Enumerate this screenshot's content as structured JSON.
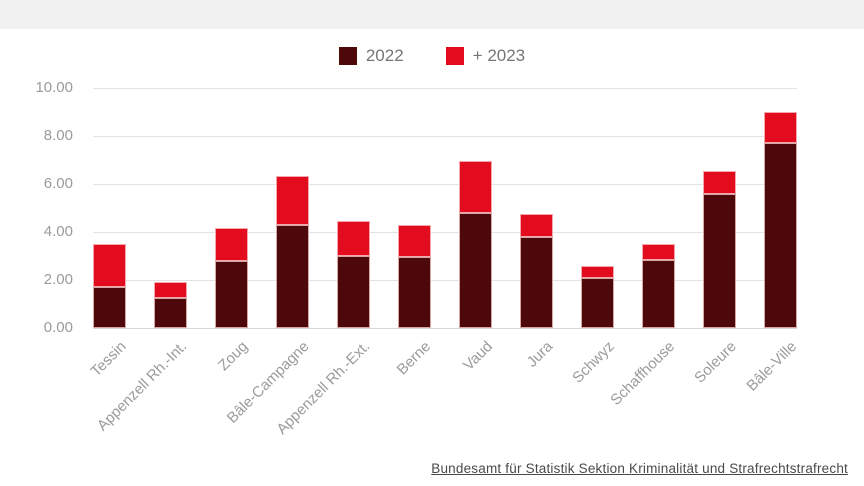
{
  "page": {
    "top_band_color": "#f1f1f2",
    "background": "#ffffff"
  },
  "source": {
    "label": "Bundesamt für Statistik Sektion Kriminalität und Strafrechtstrafrecht"
  },
  "chart_data": {
    "type": "bar",
    "stacked": true,
    "title": "",
    "xlabel": "",
    "ylabel": "",
    "grid": true,
    "legend_position": "top",
    "ylim": [
      0,
      10
    ],
    "ytick_labels": [
      "0.00",
      "2.00",
      "4.00",
      "6.00",
      "8.00",
      "10.00"
    ],
    "ytick_values": [
      0,
      2,
      4,
      6,
      8,
      10
    ],
    "categories": [
      "Tessin",
      "Appenzell Rh.-Int.",
      "Zoug",
      "Bâle-Campagne",
      "Appenzell Rh.-Ext.",
      "Berne",
      "Vaud",
      "Jura",
      "Schwyz",
      "Schaffhouse",
      "Soleure",
      "Bâle-Ville"
    ],
    "series": [
      {
        "name": "2022",
        "color": "#4d0909",
        "values": [
          1.7,
          1.25,
          2.8,
          4.3,
          3.0,
          2.95,
          4.8,
          3.8,
          2.1,
          2.85,
          5.6,
          7.7
        ]
      },
      {
        "name": "+ 2023",
        "color": "#e30b1e",
        "values": [
          1.8,
          0.65,
          1.35,
          2.05,
          1.45,
          1.35,
          2.15,
          0.95,
          0.5,
          0.65,
          0.95,
          1.3
        ]
      }
    ],
    "stacked_totals": [
      3.5,
      1.9,
      4.15,
      6.35,
      4.45,
      4.3,
      6.95,
      4.75,
      2.6,
      3.5,
      6.55,
      9.0
    ]
  }
}
